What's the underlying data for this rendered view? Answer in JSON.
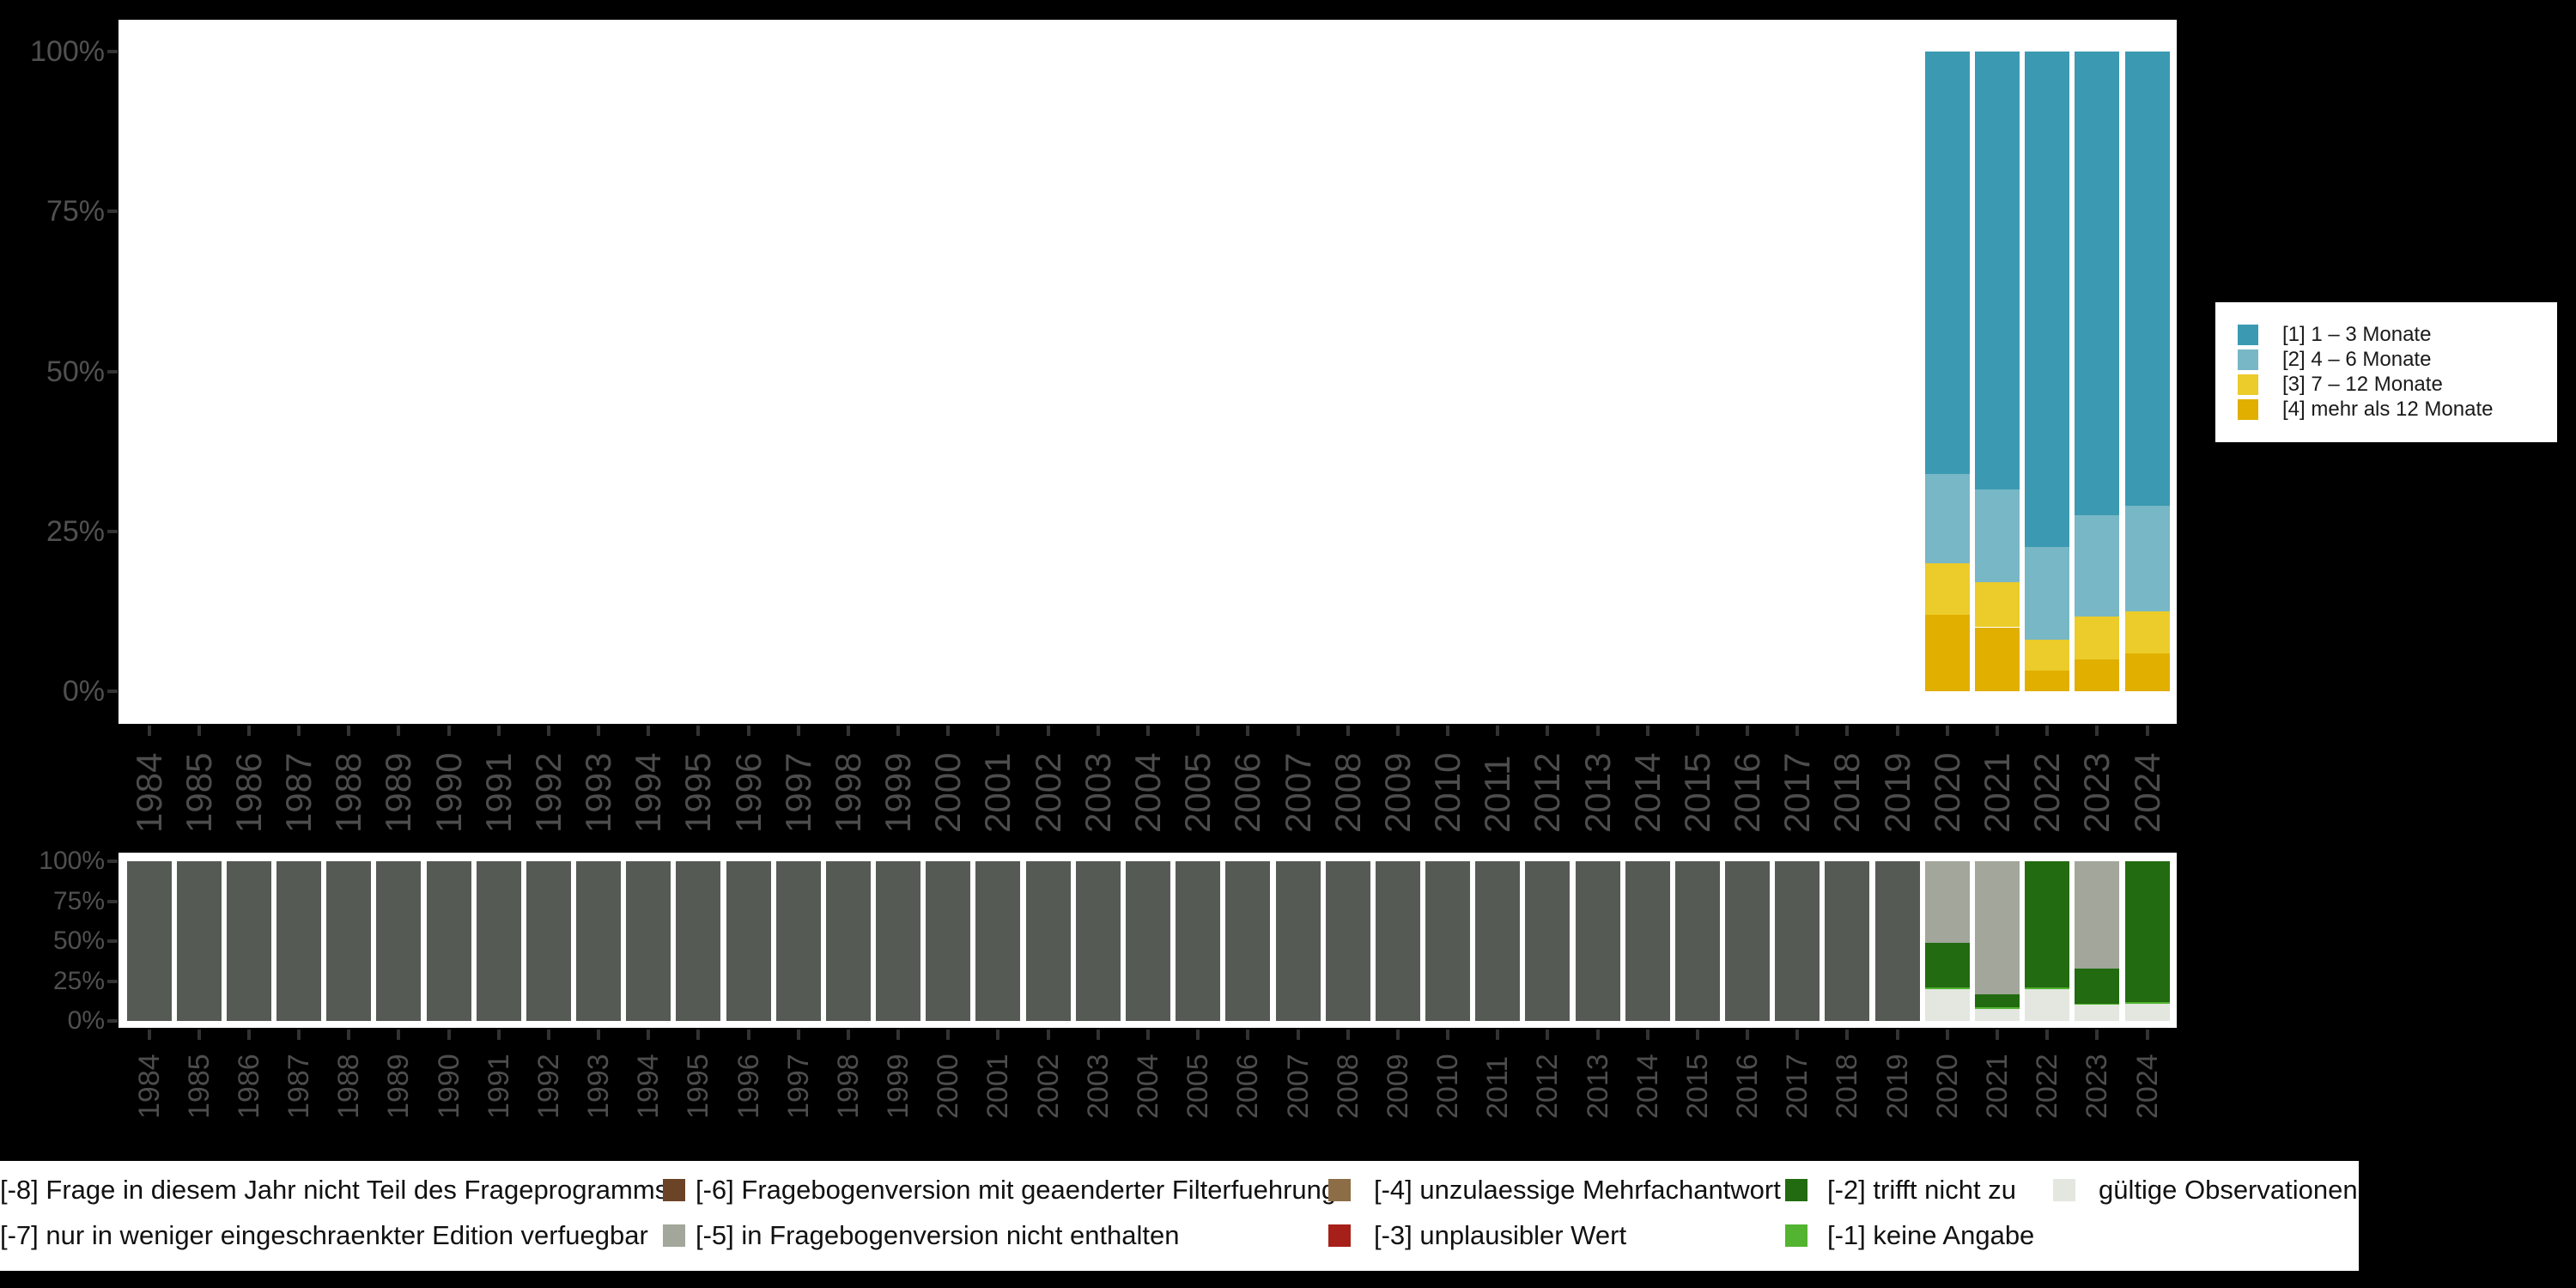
{
  "background": "#000000",
  "axis": {
    "years": [
      "1984",
      "1985",
      "1986",
      "1987",
      "1988",
      "1989",
      "1990",
      "1991",
      "1992",
      "1993",
      "1994",
      "1995",
      "1996",
      "1997",
      "1998",
      "1999",
      "2000",
      "2001",
      "2002",
      "2003",
      "2004",
      "2005",
      "2006",
      "2007",
      "2008",
      "2009",
      "2010",
      "2011",
      "2012",
      "2013",
      "2014",
      "2015",
      "2016",
      "2017",
      "2018",
      "2019",
      "2020",
      "2021",
      "2022",
      "2023",
      "2024"
    ],
    "y_tick_labels": [
      "100%",
      "75%",
      "50%",
      "25%",
      "0%"
    ],
    "label_color": "#4d4d4d",
    "tick_color": "#333333"
  },
  "chart_data": [
    {
      "id": "duration",
      "type": "bar",
      "stacked": true,
      "units": "percent",
      "ylim": [
        0,
        100
      ],
      "grid": false,
      "legend_position": "right",
      "categories": [
        "1984",
        "1985",
        "1986",
        "1987",
        "1988",
        "1989",
        "1990",
        "1991",
        "1992",
        "1993",
        "1994",
        "1995",
        "1996",
        "1997",
        "1998",
        "1999",
        "2000",
        "2001",
        "2002",
        "2003",
        "2004",
        "2005",
        "2006",
        "2007",
        "2008",
        "2009",
        "2010",
        "2011",
        "2012",
        "2013",
        "2014",
        "2015",
        "2016",
        "2017",
        "2018",
        "2019",
        "2020",
        "2021",
        "2022",
        "2023",
        "2024"
      ],
      "series": [
        {
          "label": "[1] 1 – 3 Monate",
          "color": "#3B9AB2",
          "values": {
            "2020": 66,
            "2021": 68.5,
            "2022": 77.5,
            "2023": 72.5,
            "2024": 71
          }
        },
        {
          "label": "[2] 4 – 6 Monate",
          "color": "#78B7C5",
          "values": {
            "2020": 14,
            "2021": 14.5,
            "2022": 14.5,
            "2023": 15.8,
            "2024": 16.5
          }
        },
        {
          "label": "[3] 7 – 12 Monate",
          "color": "#EBCC2A",
          "values": {
            "2020": 8,
            "2021": 7,
            "2022": 4.8,
            "2023": 6.7,
            "2024": 6.6
          }
        },
        {
          "label": "[4] mehr als 12 Monate",
          "color": "#E1AF00",
          "values": {
            "2020": 12,
            "2021": 10,
            "2022": 3.2,
            "2023": 5,
            "2024": 5.9
          }
        }
      ]
    },
    {
      "id": "missings",
      "type": "bar",
      "stacked": true,
      "units": "percent",
      "ylim": [
        0,
        100
      ],
      "grid": false,
      "legend_position": "bottom",
      "categories": [
        "1984",
        "1985",
        "1986",
        "1987",
        "1988",
        "1989",
        "1990",
        "1991",
        "1992",
        "1993",
        "1994",
        "1995",
        "1996",
        "1997",
        "1998",
        "1999",
        "2000",
        "2001",
        "2002",
        "2003",
        "2004",
        "2005",
        "2006",
        "2007",
        "2008",
        "2009",
        "2010",
        "2011",
        "2012",
        "2013",
        "2014",
        "2015",
        "2016",
        "2017",
        "2018",
        "2019",
        "2020",
        "2021",
        "2022",
        "2023",
        "2024"
      ],
      "series": [
        {
          "label": "[-8] Frage in diesem Jahr nicht Teil des Frageprogramms",
          "color": "#555B54",
          "values_range": {
            "from": "1984",
            "to": "2019",
            "value": 100
          }
        },
        {
          "label": "[-5] in Fragebogenversion nicht enthalten",
          "color": "#A2A69B",
          "values": {
            "2020": 51,
            "2021": 83.5,
            "2023": 67
          }
        },
        {
          "label": "[-2] trifft nicht zu",
          "color": "#226B10",
          "values": {
            "2020": 28,
            "2021": 8,
            "2022": 79,
            "2023": 22,
            "2024": 88
          }
        },
        {
          "label": "[-1] keine Angabe",
          "color": "#52B430",
          "values": {
            "2020": 1,
            "2021": 1,
            "2022": 1,
            "2023": 1,
            "2024": 1.5
          }
        },
        {
          "label": "gültige Observationen",
          "color": "#E3E7E0",
          "values": {
            "2020": 20,
            "2021": 7.5,
            "2022": 20,
            "2023": 10,
            "2024": 10.5
          }
        }
      ]
    }
  ],
  "bottom_legend": {
    "entries": [
      {
        "label": "[-8] Frage in diesem Jahr nicht Teil des Frageprogramms",
        "row": 0,
        "col": 0,
        "swatch_cut_off": true
      },
      {
        "label": "[-7] nur in weniger eingeschraenkter Edition verfuegbar",
        "row": 1,
        "col": 0,
        "swatch_cut_off": true
      },
      {
        "label": "[-6] Fragebogenversion mit geaenderter Filterfuehrung",
        "row": 0,
        "col": 1,
        "color": "#6B4427"
      },
      {
        "label": "[-5] in Fragebogenversion nicht enthalten",
        "row": 1,
        "col": 1,
        "color": "#A2A69B"
      },
      {
        "label": "[-4] unzulaessige Mehrfachantwort",
        "row": 0,
        "col": 2,
        "color": "#8C6D46"
      },
      {
        "label": "[-3] unplausibler Wert",
        "row": 1,
        "col": 2,
        "color": "#A62019"
      },
      {
        "label": "[-2] trifft nicht zu",
        "row": 0,
        "col": 3,
        "color": "#226B10"
      },
      {
        "label": "[-1] keine Angabe",
        "row": 1,
        "col": 3,
        "color": "#52B430"
      },
      {
        "label": "gültige Observationen",
        "row": 0,
        "col": 4,
        "color": "#E3E7E0"
      }
    ]
  }
}
